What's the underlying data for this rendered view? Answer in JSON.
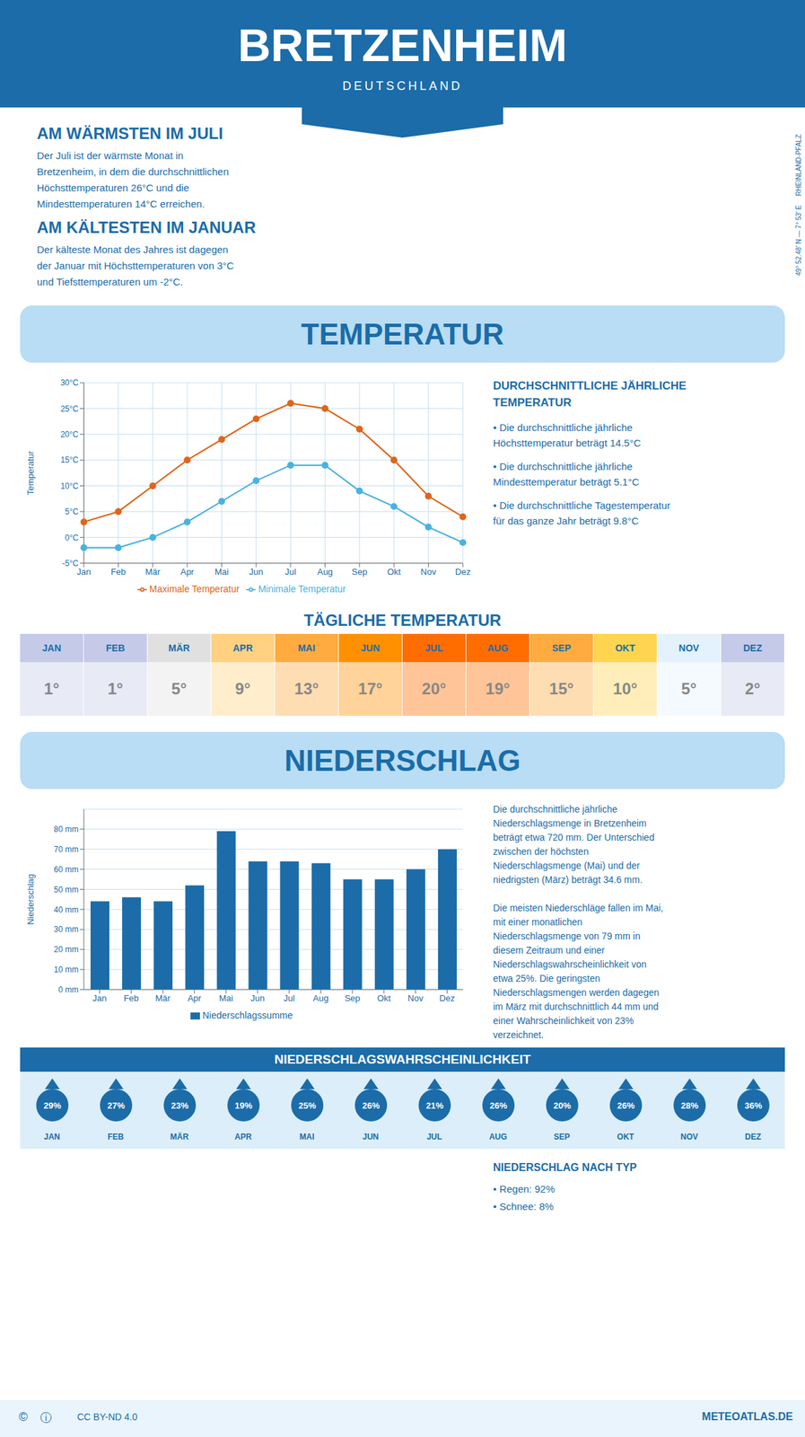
{
  "title": "BRETZENHEIM",
  "subtitle": "DEUTSCHLAND",
  "annotations": [
    "AM WÄRMSTEN IM JULI",
    "Der Juli ist der wärmste Monat in\nBretzenheim, in dem die durchschnittlichen\nHöchsttemperaturen 26°C und die\nMindesttemperaturen 14°C erreichen.",
    "AM KÄLTESTEN IM JANUAR",
    "Der kälteste Monat des Jahres ist dagegen\nder Januar mit Höchsttemperaturen von 3°C\nund Tiefsttemperaturen um -2°C.",
    "49° 52.48' N — 7° 53' E     RHEINLAND-PFALZ",
    "DURCHSCHNITTLICHE JÄHRLICHE",
    "TEMPERATUR",
    "• Die durchschnittliche jährliche\nHöchsttemperatur beträgt 14.5°C",
    "• Die durchschnittliche jährliche\nMindesttemperatur beträgt 5.1°C",
    "• Die durchschnittliche Tagestemperatur\nfür das ganze Jahr beträgt 9.8°C",
    "Die durchschnittliche jährliche\nNiederschlagsmenge in Bretzenheim\nbeträgt etwa 720 mm. Der Unterschied\nzwischen der höchsten\nNiederschlagsmenge (Mai) und der\nniedrigsten (März) beträgt 34.6 mm.\n\nDie meisten Niederschläge fallen im Mai,\nmit einer monatlichen\nNiederschlagsmenge von 79 mm in\ndiesem Zeitraum und einer\nNiederschlagswahrscheinlichkeit von\netwa 25%. Die geringsten\nNiederschlagsmengen werden dagegen\nim März mit durchschnittlich 44 mm und\neiner Wahrscheinlichkeit von 23%\nverzeichnet.",
    "NIEDERSCHLAG NACH TYP",
    "• Regen: 92%",
    "• Schnee: 8%",
    "©",
    "ⓘ",
    "CC BY-ND 4.0",
    "METEOATLAS.DE"
  ],
  "chart_data": [
    {
      "type": "line",
      "title": "TEMPERATUR",
      "categories": [
        "Jan",
        "Feb",
        "Mär",
        "Apr",
        "Mai",
        "Jun",
        "Jul",
        "Aug",
        "Sep",
        "Okt",
        "Nov",
        "Dez"
      ],
      "series": [
        {
          "name": "Maximale Temperatur",
          "color": "#e0651a",
          "marker": "circle",
          "values": [
            3,
            5,
            10,
            15,
            19,
            23,
            26,
            25,
            21,
            15,
            8,
            4
          ]
        },
        {
          "name": "Minimale Temperatur",
          "color": "#4ab2e0",
          "marker": "circle",
          "values": [
            -2,
            -2,
            0,
            3,
            7,
            11,
            14,
            14,
            9,
            6,
            2,
            -1
          ]
        }
      ],
      "ylabel": "Temperatur",
      "ylim": [
        -5,
        30
      ],
      "yticks": [
        {
          "value": -5,
          "label": "-5°C"
        },
        {
          "value": 0,
          "label": "0°C"
        },
        {
          "value": 5,
          "label": "5°C"
        },
        {
          "value": 10,
          "label": "10°C"
        },
        {
          "value": 15,
          "label": "15°C"
        },
        {
          "value": 20,
          "label": "20°C"
        },
        {
          "value": 25,
          "label": "25°C"
        },
        {
          "value": 30,
          "label": "30°C"
        }
      ],
      "grid": true,
      "legend": "bottom"
    },
    {
      "type": "bar",
      "title": "NIEDERSCHLAG",
      "categories": [
        "Jan",
        "Feb",
        "Mär",
        "Apr",
        "Mai",
        "Jun",
        "Jul",
        "Aug",
        "Sep",
        "Okt",
        "Nov",
        "Dez"
      ],
      "series": [
        {
          "name": "Niederschlagssumme",
          "color": "#1b6ca8",
          "values": [
            44,
            46,
            44,
            52,
            79,
            64,
            64,
            63,
            55,
            55,
            60,
            70
          ]
        }
      ],
      "ylabel": "Niederschlag",
      "ylim": [
        0,
        90
      ],
      "yticks": [
        {
          "value": 0,
          "label": "0 mm"
        },
        {
          "value": 10,
          "label": "10 mm"
        },
        {
          "value": 20,
          "label": "20 mm"
        },
        {
          "value": 30,
          "label": "30 mm"
        },
        {
          "value": 40,
          "label": "40 mm"
        },
        {
          "value": 50,
          "label": "50 mm"
        },
        {
          "value": 60,
          "label": "60 mm"
        },
        {
          "value": 70,
          "label": "70 mm"
        },
        {
          "value": 80,
          "label": "80 mm"
        }
      ],
      "grid": "y",
      "legend": "bottom"
    },
    {
      "type": "table",
      "title": "TÄGLICHE TEMPERATUR",
      "categories": [
        "JAN",
        "FEB",
        "MÄR",
        "APR",
        "MAI",
        "JUN",
        "JUL",
        "AUG",
        "SEP",
        "OKT",
        "NOV",
        "DEZ"
      ],
      "values": [
        1,
        1,
        5,
        9,
        13,
        17,
        20,
        19,
        15,
        10,
        5,
        2
      ],
      "value_labels": [
        "1°",
        "1°",
        "5°",
        "9°",
        "13°",
        "17°",
        "20°",
        "19°",
        "15°",
        "10°",
        "5°",
        "2°"
      ],
      "data_labels": true,
      "colors": [
        "#c5cae9",
        "#c5cae9",
        "#e0e0e0",
        "#ffd180",
        "#ffab40",
        "#ff9100",
        "#ff6d00",
        "#ff6d00",
        "#ffab40",
        "#ffd54f",
        "#e3f2fd",
        "#c5cae9"
      ]
    },
    {
      "type": "table",
      "title": "NIEDERSCHLAGSWAHRSCHEINLICHKEIT",
      "categories": [
        "JAN",
        "FEB",
        "MÄR",
        "APR",
        "MAI",
        "JUN",
        "JUL",
        "AUG",
        "SEP",
        "OKT",
        "NOV",
        "DEZ"
      ],
      "values": [
        29,
        27,
        23,
        19,
        25,
        26,
        21,
        26,
        20,
        26,
        28,
        36
      ],
      "value_labels": [
        "29%",
        "27%",
        "23%",
        "19%",
        "25%",
        "26%",
        "21%",
        "26%",
        "20%",
        "26%",
        "28%",
        "36%"
      ],
      "data_labels": true,
      "color": "#1b6ca8",
      "marker": "drop"
    }
  ]
}
